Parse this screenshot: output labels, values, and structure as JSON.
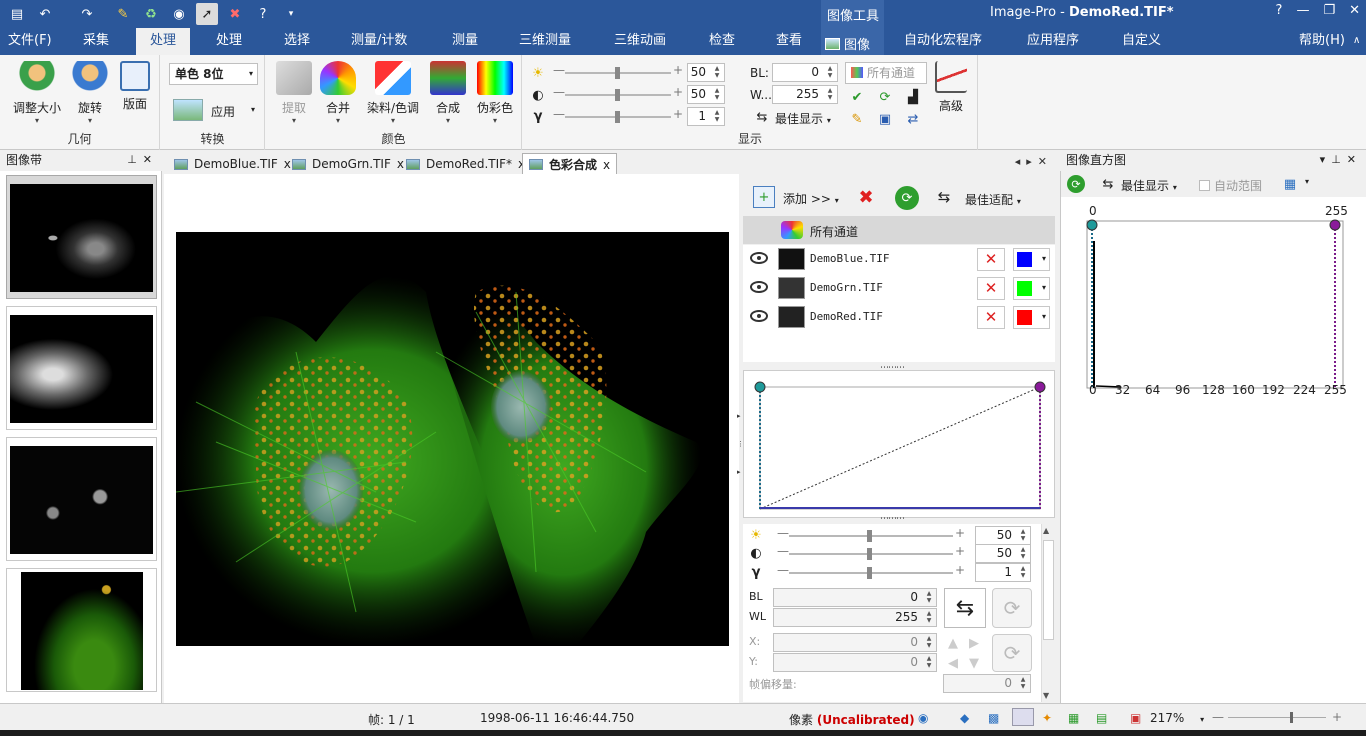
{
  "app": {
    "title_prefix": "Image-Pro - ",
    "title_doc": "DemoRed.TIF*",
    "context_tab_group": "图像工具"
  },
  "menubar": {
    "tabs": [
      "文件(F)",
      "采集",
      "处理",
      "处理",
      "选择",
      "测量/计数",
      "测量",
      "三维测量",
      "三维动画",
      "检查",
      "查看",
      "图像",
      "自动化宏程序",
      "应用程序",
      "自定义",
      "帮助(H)"
    ]
  },
  "ribbon": {
    "geometry": {
      "label": "几何",
      "resize": "调整大小",
      "rotate": "旋转",
      "layout": "版面"
    },
    "convert": {
      "label": "转换",
      "mode": "单色 8位",
      "apply": "应用"
    },
    "color": {
      "label": "颜色",
      "extract": "提取",
      "merge": "合并",
      "stain": "染料/色调",
      "composite": "合成",
      "pseudo": "伪彩色"
    },
    "display": {
      "label": "显示",
      "brightness": 50,
      "contrast": 50,
      "gamma": 1,
      "bl_label": "BL:",
      "bl": 0,
      "wl_label": "W...",
      "wl": 255,
      "best_fit": "最佳显示",
      "channels": "所有通道",
      "advanced": "高级"
    }
  },
  "image_strip": {
    "title": "图像带"
  },
  "doc_tabs": [
    {
      "label": "DemoBlue.TIF"
    },
    {
      "label": "DemoGrn.TIF"
    },
    {
      "label": "DemoRed.TIF*"
    },
    {
      "label": "色彩合成"
    }
  ],
  "composite": {
    "add": "添加 >>",
    "best_fit": "最佳适配",
    "all_channels": "所有通道",
    "channels": [
      {
        "name": "DemoBlue.TIF",
        "color": "#0000ff"
      },
      {
        "name": "DemoGrn.TIF",
        "color": "#00ff00"
      },
      {
        "name": "DemoRed.TIF",
        "color": "#ff0000"
      }
    ],
    "brightness": 50,
    "contrast": 50,
    "gamma": 1,
    "bl_label": "BL",
    "bl": 0,
    "wl_label": "WL",
    "wl": 255,
    "x_label": "X:",
    "x": 0,
    "y_label": "Y:",
    "y": 0,
    "offset_label": "帧偏移量:",
    "offset": 0
  },
  "histogram": {
    "title": "图像直方图",
    "best_fit": "最佳显示",
    "auto_range": "自动范围",
    "min_marker": "0",
    "max_marker": "255",
    "ticks": [
      "0",
      "32",
      "64",
      "96",
      "128",
      "160",
      "192",
      "224",
      "255"
    ]
  },
  "status": {
    "frame": "帧: 1 / 1",
    "datetime": "1998-06-11 16:46:44.750",
    "units_label": "像素",
    "calibration": "(Uncalibrated)",
    "zoom": "217%"
  }
}
